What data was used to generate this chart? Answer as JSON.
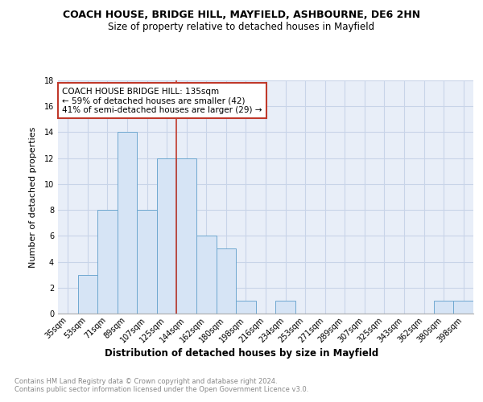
{
  "title": "COACH HOUSE, BRIDGE HILL, MAYFIELD, ASHBOURNE, DE6 2HN",
  "subtitle": "Size of property relative to detached houses in Mayfield",
  "xlabel": "Distribution of detached houses by size in Mayfield",
  "ylabel": "Number of detached properties",
  "bar_color": "#d6e4f5",
  "bar_edge_color": "#6fa8d0",
  "background_color": "#e8eef8",
  "grid_color": "#c8d4e8",
  "categories": [
    "35sqm",
    "53sqm",
    "71sqm",
    "89sqm",
    "107sqm",
    "125sqm",
    "144sqm",
    "162sqm",
    "180sqm",
    "198sqm",
    "216sqm",
    "234sqm",
    "253sqm",
    "271sqm",
    "289sqm",
    "307sqm",
    "325sqm",
    "343sqm",
    "362sqm",
    "380sqm",
    "398sqm"
  ],
  "values": [
    0,
    3,
    8,
    14,
    8,
    12,
    12,
    6,
    5,
    1,
    0,
    1,
    0,
    0,
    0,
    0,
    0,
    0,
    0,
    1,
    1
  ],
  "ylim": [
    0,
    18
  ],
  "yticks": [
    0,
    2,
    4,
    6,
    8,
    10,
    12,
    14,
    16,
    18
  ],
  "vline_x": 5.5,
  "vline_color": "#c0392b",
  "annotation_text": "COACH HOUSE BRIDGE HILL: 135sqm\n← 59% of detached houses are smaller (42)\n41% of semi-detached houses are larger (29) →",
  "annotation_box_color": "white",
  "annotation_box_edge": "#c0392b",
  "footer_line1": "Contains HM Land Registry data © Crown copyright and database right 2024.",
  "footer_line2": "Contains public sector information licensed under the Open Government Licence v3.0."
}
